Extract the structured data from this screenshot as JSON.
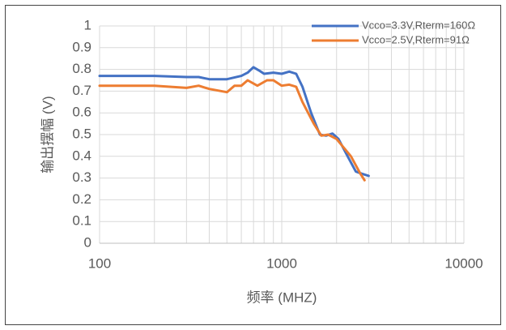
{
  "chart_data": {
    "type": "line",
    "x_label": "频率 (MHZ)",
    "y_label": "输出摆幅 (V)",
    "xscale": "log",
    "grid": true,
    "legend": "top-right",
    "xlim": [
      100,
      10000
    ],
    "xticks": [
      100,
      1000,
      10000
    ],
    "ylim": [
      0,
      1
    ],
    "yticks": [
      0,
      0.1,
      0.2,
      0.3,
      0.4,
      0.5,
      0.6,
      0.7,
      0.8,
      0.9,
      1
    ],
    "series": [
      {
        "name": "Vcco=3.3V,Rterm=160Ω",
        "color": "#4472c4",
        "x": [
          100,
          200,
          300,
          350,
          400,
          500,
          600,
          650,
          700,
          750,
          800,
          900,
          1000,
          1100,
          1200,
          1300,
          1450,
          1620,
          1750,
          1900,
          2050,
          2300,
          2550,
          2750,
          3000
        ],
        "values": [
          0.77,
          0.77,
          0.765,
          0.765,
          0.755,
          0.755,
          0.77,
          0.785,
          0.81,
          0.795,
          0.78,
          0.785,
          0.78,
          0.79,
          0.78,
          0.72,
          0.6,
          0.5,
          0.495,
          0.505,
          0.48,
          0.4,
          0.33,
          0.32,
          0.31
        ]
      },
      {
        "name": "Vcco=2.5V,Rterm=91Ω",
        "color": "#ed7d31",
        "x": [
          100,
          200,
          300,
          350,
          400,
          500,
          550,
          600,
          650,
          735,
          830,
          900,
          1000,
          1100,
          1200,
          1300,
          1500,
          1650,
          1800,
          2000,
          2400,
          2700,
          2850
        ],
        "values": [
          0.725,
          0.725,
          0.715,
          0.725,
          0.71,
          0.695,
          0.725,
          0.725,
          0.75,
          0.725,
          0.75,
          0.75,
          0.725,
          0.73,
          0.72,
          0.65,
          0.55,
          0.495,
          0.5,
          0.48,
          0.4,
          0.32,
          0.29
        ]
      }
    ]
  }
}
